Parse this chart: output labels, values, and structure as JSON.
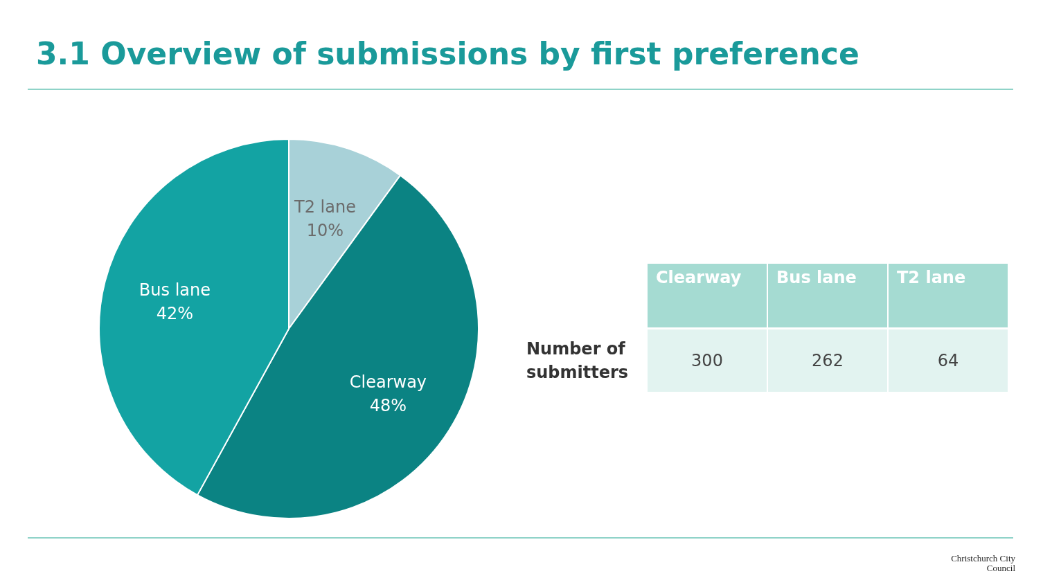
{
  "chart_data": [
    {
      "type": "pie",
      "title": "3.1 Overview of submissions by first preference",
      "categories": [
        "T2 lane",
        "Clearway",
        "Bus lane"
      ],
      "values": [
        10,
        48,
        42
      ],
      "colors": [
        "#a8d1d8",
        "#0b8383",
        "#13a3a3"
      ],
      "value_labels": [
        "10%",
        "48%",
        "42%"
      ],
      "legend": false,
      "annotations": [
        "Christchurch City Council"
      ]
    },
    {
      "type": "other",
      "categories": [
        "Clearway",
        "Bus lane",
        "T2 lane"
      ],
      "values": [
        300,
        262,
        64
      ],
      "ylabel": "Number of submitters",
      "data_labels": true
    }
  ]
}
